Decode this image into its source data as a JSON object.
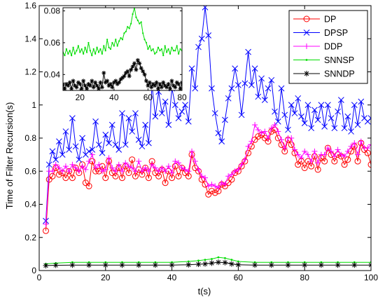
{
  "chart_data": {
    "type": "line",
    "xlabel": "t(s)",
    "ylabel": "Time of Filter Recursion(s)",
    "xlim": [
      0,
      100
    ],
    "ylim": [
      0,
      1.6
    ],
    "xticks": [
      "0",
      "20",
      "40",
      "60",
      "80",
      "100"
    ],
    "yticks": [
      "0",
      "0.2",
      "0.4",
      "0.6",
      "0.8",
      "1",
      "1.2",
      "1.4",
      "1.6"
    ],
    "legend_position": "top-right",
    "series": [
      {
        "name": "DP",
        "color": "#ff0000",
        "marker": "circle",
        "x": [
          2,
          3,
          4,
          5,
          6,
          7,
          8,
          9,
          10,
          11,
          12,
          13,
          14,
          15,
          16,
          17,
          18,
          19,
          20,
          21,
          22,
          23,
          24,
          25,
          26,
          27,
          28,
          29,
          30,
          31,
          32,
          33,
          34,
          35,
          36,
          37,
          38,
          39,
          40,
          41,
          42,
          43,
          44,
          45,
          46,
          47,
          48,
          49,
          50,
          51,
          52,
          53,
          54,
          55,
          56,
          57,
          58,
          59,
          60,
          61,
          62,
          63,
          64,
          65,
          66,
          67,
          68,
          69,
          70,
          71,
          72,
          73,
          74,
          75,
          76,
          77,
          78,
          79,
          80,
          81,
          82,
          83,
          84,
          85,
          86,
          87,
          88,
          89,
          90,
          91,
          92,
          93,
          94,
          95,
          96,
          97,
          98,
          99,
          100
        ],
        "values": [
          0.24,
          0.55,
          0.57,
          0.62,
          0.58,
          0.59,
          0.56,
          0.6,
          0.56,
          0.62,
          0.59,
          0.64,
          0.53,
          0.51,
          0.66,
          0.6,
          0.6,
          0.63,
          0.56,
          0.66,
          0.59,
          0.57,
          0.62,
          0.56,
          0.63,
          0.59,
          0.67,
          0.57,
          0.61,
          0.58,
          0.62,
          0.56,
          0.66,
          0.59,
          0.57,
          0.61,
          0.53,
          0.6,
          0.56,
          0.63,
          0.57,
          0.62,
          0.59,
          0.57,
          0.7,
          0.62,
          0.6,
          0.55,
          0.52,
          0.46,
          0.48,
          0.47,
          0.48,
          0.52,
          0.51,
          0.53,
          0.55,
          0.59,
          0.6,
          0.63,
          0.66,
          0.71,
          0.75,
          0.79,
          0.81,
          0.82,
          0.8,
          0.78,
          0.84,
          0.85,
          0.8,
          0.76,
          0.72,
          0.79,
          0.76,
          0.71,
          0.64,
          0.66,
          0.62,
          0.66,
          0.63,
          0.69,
          0.61,
          0.68,
          0.66,
          0.74,
          0.7,
          0.66,
          0.7,
          0.69,
          0.64,
          0.67,
          0.72,
          0.75,
          0.66,
          0.77,
          0.73,
          0.71,
          0.64
        ]
      },
      {
        "name": "DPSP",
        "color": "#0000ff",
        "marker": "x",
        "x": [
          2,
          3,
          4,
          5,
          6,
          7,
          8,
          9,
          10,
          11,
          12,
          13,
          14,
          15,
          16,
          17,
          18,
          19,
          20,
          21,
          22,
          23,
          24,
          25,
          26,
          27,
          28,
          29,
          30,
          31,
          32,
          33,
          34,
          35,
          36,
          37,
          38,
          39,
          40,
          41,
          42,
          43,
          44,
          45,
          46,
          47,
          48,
          49,
          50,
          51,
          52,
          53,
          54,
          55,
          56,
          57,
          58,
          59,
          60,
          61,
          62,
          63,
          64,
          65,
          66,
          67,
          68,
          69,
          70,
          71,
          72,
          73,
          74,
          75,
          76,
          77,
          78,
          79,
          80,
          81,
          82,
          83,
          84,
          85,
          86,
          87,
          88,
          89,
          90,
          91,
          92,
          93,
          94,
          95,
          96,
          97,
          98,
          99,
          100
        ],
        "values": [
          0.3,
          0.64,
          0.72,
          0.67,
          0.78,
          0.7,
          0.84,
          0.73,
          0.92,
          0.75,
          0.67,
          0.8,
          0.7,
          0.72,
          0.73,
          0.9,
          0.76,
          0.71,
          0.82,
          0.77,
          0.88,
          0.76,
          0.73,
          0.95,
          0.76,
          0.92,
          0.84,
          0.95,
          0.79,
          0.75,
          0.88,
          0.77,
          1.12,
          0.93,
          1.08,
          0.95,
          1.02,
          0.88,
          1.1,
          1.0,
          0.92,
          0.96,
          1.0,
          0.9,
          1.22,
          1.1,
          1.35,
          1.4,
          1.59,
          1.42,
          1.1,
          0.95,
          0.83,
          0.78,
          0.91,
          1.04,
          1.1,
          1.22,
          1.12,
          0.94,
          1.13,
          1.32,
          1.12,
          1.22,
          1.05,
          1.16,
          1.03,
          1.1,
          1.15,
          0.96,
          0.9,
          1.1,
          0.94,
          0.85,
          1.0,
          0.95,
          1.04,
          0.93,
          0.89,
          1.0,
          0.86,
          0.97,
          0.91,
          1.0,
          0.87,
          1.0,
          0.92,
          0.86,
          0.96,
          1.03,
          0.86,
          0.93,
          0.84,
          1.0,
          0.88,
          1.02,
          0.92,
          0.9,
          0.92
        ]
      },
      {
        "name": "DDP",
        "color": "#ff00ff",
        "marker": "plus",
        "x": [
          2,
          3,
          4,
          5,
          6,
          7,
          8,
          9,
          10,
          11,
          12,
          13,
          14,
          15,
          16,
          17,
          18,
          19,
          20,
          21,
          22,
          23,
          24,
          25,
          26,
          27,
          28,
          29,
          30,
          31,
          32,
          33,
          34,
          35,
          36,
          37,
          38,
          39,
          40,
          41,
          42,
          43,
          44,
          45,
          46,
          47,
          48,
          49,
          50,
          51,
          52,
          53,
          54,
          55,
          56,
          57,
          58,
          59,
          60,
          61,
          62,
          63,
          64,
          65,
          66,
          67,
          68,
          69,
          70,
          71,
          72,
          73,
          74,
          75,
          76,
          77,
          78,
          79,
          80,
          81,
          82,
          83,
          84,
          85,
          86,
          87,
          88,
          89,
          90,
          91,
          92,
          93,
          94,
          95,
          96,
          97,
          98,
          99,
          100
        ],
        "values": [
          0.28,
          0.6,
          0.6,
          0.64,
          0.62,
          0.6,
          0.63,
          0.6,
          0.64,
          0.62,
          0.6,
          0.63,
          0.61,
          0.66,
          0.7,
          0.62,
          0.64,
          0.6,
          0.61,
          0.68,
          0.62,
          0.6,
          0.64,
          0.6,
          0.65,
          0.63,
          0.62,
          0.6,
          0.66,
          0.6,
          0.62,
          0.6,
          0.64,
          0.62,
          0.6,
          0.62,
          0.6,
          0.63,
          0.59,
          0.66,
          0.65,
          0.62,
          0.61,
          0.6,
          0.72,
          0.66,
          0.61,
          0.57,
          0.56,
          0.51,
          0.52,
          0.51,
          0.5,
          0.53,
          0.52,
          0.57,
          0.58,
          0.6,
          0.61,
          0.64,
          0.67,
          0.75,
          0.78,
          0.88,
          0.85,
          0.83,
          0.84,
          0.8,
          0.86,
          0.88,
          0.84,
          0.79,
          0.74,
          0.8,
          0.8,
          0.73,
          0.7,
          0.68,
          0.72,
          0.7,
          0.66,
          0.72,
          0.65,
          0.7,
          0.7,
          0.74,
          0.72,
          0.69,
          0.73,
          0.7,
          0.69,
          0.72,
          0.75,
          0.77,
          0.7,
          0.78,
          0.74,
          0.74,
          0.76
        ]
      },
      {
        "name": "SNNSP",
        "color": "#00dd00",
        "marker": "dot",
        "x": [
          2,
          5,
          10,
          15,
          20,
          25,
          30,
          35,
          40,
          45,
          48,
          50,
          52,
          54,
          56,
          58,
          60,
          65,
          70,
          75,
          80,
          85,
          90,
          95,
          100
        ],
        "values": [
          0.04,
          0.045,
          0.05,
          0.05,
          0.05,
          0.05,
          0.05,
          0.05,
          0.05,
          0.055,
          0.06,
          0.065,
          0.07,
          0.08,
          0.075,
          0.065,
          0.055,
          0.05,
          0.05,
          0.05,
          0.05,
          0.05,
          0.05,
          0.05,
          0.05
        ]
      },
      {
        "name": "SNNDP",
        "color": "#000000",
        "marker": "asterisk",
        "x": [
          2,
          5,
          10,
          15,
          20,
          25,
          30,
          35,
          40,
          45,
          48,
          50,
          52,
          54,
          56,
          58,
          60,
          65,
          70,
          75,
          80,
          85,
          90,
          95,
          100
        ],
        "values": [
          0.03,
          0.032,
          0.033,
          0.033,
          0.033,
          0.033,
          0.033,
          0.033,
          0.033,
          0.035,
          0.038,
          0.04,
          0.045,
          0.05,
          0.048,
          0.04,
          0.035,
          0.033,
          0.033,
          0.033,
          0.033,
          0.033,
          0.033,
          0.033,
          0.033
        ]
      }
    ],
    "inset": {
      "xlim": [
        10,
        80
      ],
      "ylim": [
        0.03,
        0.082
      ],
      "xticks": [
        "20",
        "40",
        "60",
        "80"
      ],
      "yticks": [
        "0.04",
        "0.06",
        "0.08"
      ],
      "series": [
        {
          "name": "SNNSP",
          "color": "#00dd00",
          "marker": "dot",
          "x": [
            10,
            11,
            12,
            13,
            14,
            15,
            16,
            17,
            18,
            19,
            20,
            21,
            22,
            23,
            24,
            25,
            26,
            27,
            28,
            29,
            30,
            31,
            32,
            33,
            34,
            35,
            36,
            37,
            38,
            39,
            40,
            41,
            42,
            43,
            44,
            45,
            46,
            47,
            48,
            49,
            50,
            51,
            52,
            53,
            54,
            55,
            56,
            57,
            58,
            59,
            60,
            61,
            62,
            63,
            64,
            65,
            66,
            67,
            68,
            69,
            70,
            71,
            72,
            73,
            74,
            75,
            76,
            77,
            78,
            79,
            80
          ],
          "values": [
            0.054,
            0.052,
            0.056,
            0.053,
            0.055,
            0.052,
            0.057,
            0.053,
            0.055,
            0.058,
            0.054,
            0.056,
            0.053,
            0.057,
            0.054,
            0.06,
            0.055,
            0.052,
            0.056,
            0.053,
            0.057,
            0.054,
            0.056,
            0.053,
            0.058,
            0.055,
            0.062,
            0.057,
            0.056,
            0.06,
            0.058,
            0.062,
            0.058,
            0.061,
            0.063,
            0.062,
            0.066,
            0.067,
            0.07,
            0.069,
            0.072,
            0.078,
            0.082,
            0.076,
            0.074,
            0.072,
            0.073,
            0.066,
            0.062,
            0.06,
            0.056,
            0.058,
            0.055,
            0.056,
            0.053,
            0.054,
            0.057,
            0.055,
            0.056,
            0.052,
            0.058,
            0.054,
            0.056,
            0.053,
            0.057,
            0.055,
            0.055,
            0.058,
            0.053,
            0.056,
            0.055
          ]
        },
        {
          "name": "SNNDP",
          "color": "#000000",
          "marker": "asterisk",
          "x": [
            10,
            11,
            12,
            13,
            14,
            15,
            16,
            17,
            18,
            19,
            20,
            21,
            22,
            23,
            24,
            25,
            26,
            27,
            28,
            29,
            30,
            31,
            32,
            33,
            34,
            35,
            36,
            37,
            38,
            39,
            40,
            41,
            42,
            43,
            44,
            45,
            46,
            47,
            48,
            49,
            50,
            51,
            52,
            53,
            54,
            55,
            56,
            57,
            58,
            59,
            60,
            61,
            62,
            63,
            64,
            65,
            66,
            67,
            68,
            69,
            70,
            71,
            72,
            73,
            74,
            75,
            76,
            77,
            78,
            79,
            80
          ],
          "values": [
            0.034,
            0.031,
            0.034,
            0.033,
            0.035,
            0.031,
            0.036,
            0.033,
            0.032,
            0.035,
            0.034,
            0.031,
            0.036,
            0.033,
            0.031,
            0.034,
            0.033,
            0.036,
            0.032,
            0.035,
            0.033,
            0.031,
            0.035,
            0.032,
            0.041,
            0.035,
            0.036,
            0.033,
            0.034,
            0.032,
            0.035,
            0.036,
            0.034,
            0.035,
            0.037,
            0.038,
            0.039,
            0.041,
            0.042,
            0.039,
            0.043,
            0.045,
            0.047,
            0.043,
            0.049,
            0.047,
            0.044,
            0.042,
            0.04,
            0.036,
            0.033,
            0.035,
            0.032,
            0.034,
            0.033,
            0.035,
            0.031,
            0.034,
            0.032,
            0.035,
            0.033,
            0.032,
            0.034,
            0.031,
            0.036,
            0.033,
            0.032,
            0.035,
            0.034,
            0.031,
            0.035
          ]
        }
      ]
    }
  }
}
